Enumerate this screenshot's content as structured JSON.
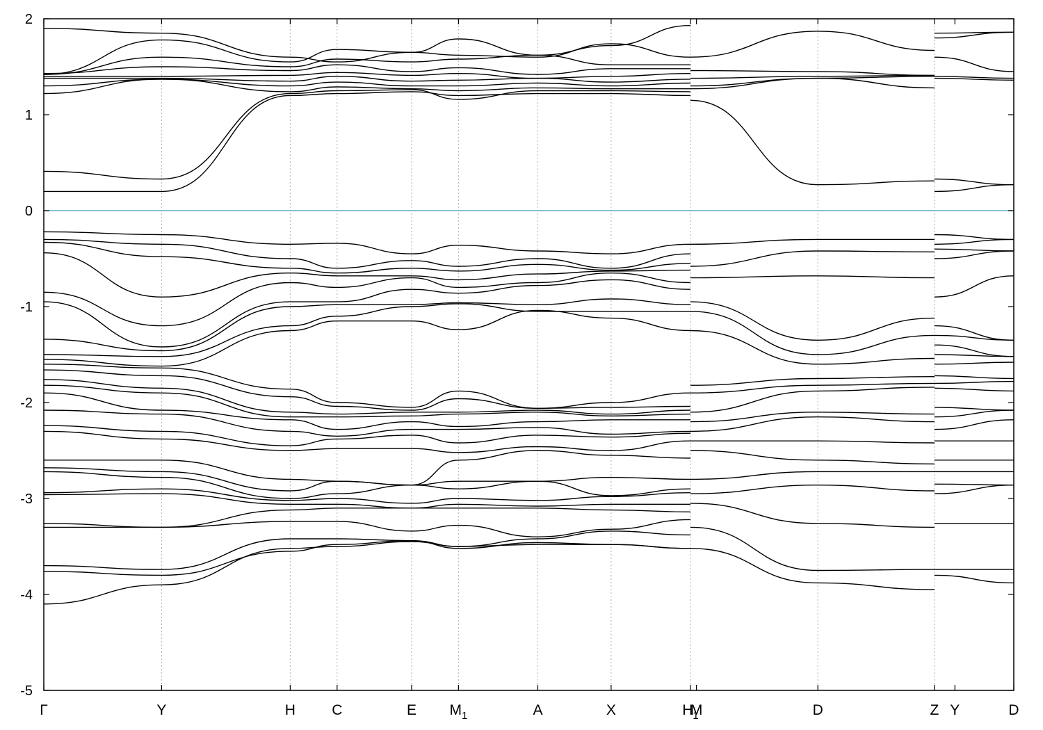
{
  "chart_data": {
    "type": "line",
    "title": "",
    "xlabel": "",
    "ylabel": "",
    "xlim": [
      0,
      8.07
    ],
    "ylim": [
      -5,
      2
    ],
    "y_ticks": [
      2,
      1,
      0,
      -1,
      -2,
      -3,
      -4,
      -5
    ],
    "y_tick_labels": [
      "2",
      "1",
      "0",
      "-1",
      "-2",
      "-3",
      "-4",
      "-5"
    ],
    "grid": "vertical dotted lines at high-symmetry points",
    "fermi_level": 0,
    "colors": {
      "bands": "#000000",
      "fermi": "#5ab4c8",
      "grid": "#b0b0b0"
    },
    "kpoints": [
      {
        "label": "Γ",
        "sub": "",
        "x": 0.0
      },
      {
        "label": "Y",
        "sub": "",
        "x": 0.98
      },
      {
        "label": "H",
        "sub": "",
        "x": 2.05
      },
      {
        "label": "C",
        "sub": "",
        "x": 2.44
      },
      {
        "label": "E",
        "sub": "",
        "x": 3.06
      },
      {
        "label": "M",
        "sub": "1",
        "x": 3.45
      },
      {
        "label": "A",
        "sub": "",
        "x": 4.11
      },
      {
        "label": "X",
        "sub": "",
        "x": 4.72
      },
      {
        "label": "H",
        "sub": "1",
        "x": 5.38
      },
      {
        "label": "M",
        "sub": "",
        "x": 5.43
      },
      {
        "label": "D",
        "sub": "",
        "x": 6.44
      },
      {
        "label": "Z",
        "sub": "",
        "x": 7.41
      },
      {
        "label": "Y",
        "sub": "",
        "x": 7.58
      },
      {
        "label": "D",
        "sub": "",
        "x": 8.07
      }
    ],
    "grid_x": [
      0.98,
      2.05,
      2.44,
      3.06,
      3.45,
      4.11,
      4.72,
      5.38,
      6.44,
      7.41
    ],
    "segments": [
      {
        "x_start": 0.0,
        "x_end": 5.38,
        "x": [
          0.0,
          0.98,
          2.05,
          2.44,
          3.06,
          3.45,
          4.11,
          4.72,
          5.38
        ]
      },
      {
        "x_start": 5.38,
        "x_end": 7.41,
        "x": [
          5.38,
          6.44,
          7.41
        ]
      },
      {
        "x_start": 7.41,
        "x_end": 8.07,
        "x": [
          7.41,
          8.07
        ]
      }
    ],
    "series": [
      {
        "segment": 0,
        "values": [
          0.2,
          0.2,
          1.2,
          1.22,
          1.24,
          1.2,
          1.22,
          1.22,
          1.2
        ]
      },
      {
        "segment": 0,
        "values": [
          0.41,
          0.33,
          1.22,
          1.25,
          1.26,
          1.16,
          1.25,
          1.25,
          1.24
        ]
      },
      {
        "segment": 0,
        "values": [
          1.22,
          1.37,
          1.24,
          1.29,
          1.27,
          1.25,
          1.28,
          1.27,
          1.27
        ]
      },
      {
        "segment": 0,
        "values": [
          1.3,
          1.37,
          1.3,
          1.34,
          1.3,
          1.3,
          1.33,
          1.3,
          1.33
        ]
      },
      {
        "segment": 0,
        "values": [
          1.38,
          1.38,
          1.35,
          1.4,
          1.35,
          1.36,
          1.38,
          1.34,
          1.37
        ]
      },
      {
        "segment": 0,
        "values": [
          1.4,
          1.4,
          1.41,
          1.44,
          1.41,
          1.43,
          1.38,
          1.4,
          1.43
        ]
      },
      {
        "segment": 0,
        "values": [
          1.43,
          1.5,
          1.46,
          1.52,
          1.45,
          1.49,
          1.42,
          1.48,
          1.48
        ]
      },
      {
        "segment": 0,
        "values": [
          1.42,
          1.6,
          1.5,
          1.58,
          1.55,
          1.58,
          1.62,
          1.52,
          1.52
        ]
      },
      {
        "segment": 0,
        "values": [
          1.42,
          1.78,
          1.55,
          1.68,
          1.65,
          1.62,
          1.6,
          1.74,
          1.6
        ]
      },
      {
        "segment": 0,
        "values": [
          1.9,
          1.85,
          1.6,
          1.55,
          1.65,
          1.79,
          1.62,
          1.72,
          1.93
        ]
      },
      {
        "segment": 0,
        "values": [
          -0.22,
          -0.25,
          -0.35,
          -0.34,
          -0.45,
          -0.36,
          -0.42,
          -0.45,
          -0.35
        ]
      },
      {
        "segment": 0,
        "values": [
          -0.3,
          -0.35,
          -0.5,
          -0.6,
          -0.52,
          -0.58,
          -0.5,
          -0.6,
          -0.45
        ]
      },
      {
        "segment": 0,
        "values": [
          -0.33,
          -0.48,
          -0.6,
          -0.65,
          -0.6,
          -0.63,
          -0.56,
          -0.62,
          -0.55
        ]
      },
      {
        "segment": 0,
        "values": [
          -0.44,
          -0.9,
          -0.65,
          -0.68,
          -0.68,
          -0.72,
          -0.66,
          -0.63,
          -0.62
        ]
      },
      {
        "segment": 0,
        "values": [
          -0.85,
          -1.2,
          -0.75,
          -0.8,
          -0.7,
          -0.8,
          -0.75,
          -0.65,
          -0.75
        ]
      },
      {
        "segment": 0,
        "values": [
          -0.95,
          -1.42,
          -0.95,
          -0.95,
          -0.82,
          -0.86,
          -0.78,
          -0.72,
          -0.82
        ]
      },
      {
        "segment": 0,
        "values": [
          -1.34,
          -1.46,
          -1.0,
          -0.98,
          -0.98,
          -0.96,
          -0.98,
          -0.92,
          -0.98
        ]
      },
      {
        "segment": 0,
        "values": [
          -1.5,
          -1.52,
          -1.2,
          -1.1,
          -1.0,
          -0.97,
          -1.05,
          -1.05,
          -1.05
        ]
      },
      {
        "segment": 0,
        "values": [
          -1.55,
          -1.62,
          -1.25,
          -1.15,
          -1.15,
          -1.24,
          -1.04,
          -1.12,
          -1.25
        ]
      },
      {
        "segment": 0,
        "values": [
          -1.6,
          -1.64,
          -1.86,
          -2.0,
          -2.05,
          -1.88,
          -2.06,
          -2.0,
          -1.9
        ]
      },
      {
        "segment": 0,
        "values": [
          -1.66,
          -1.72,
          -1.94,
          -2.04,
          -2.08,
          -1.96,
          -2.06,
          -2.05,
          -2.04
        ]
      },
      {
        "segment": 0,
        "values": [
          -1.76,
          -1.85,
          -2.1,
          -2.12,
          -2.1,
          -2.1,
          -2.08,
          -2.12,
          -2.08
        ]
      },
      {
        "segment": 0,
        "values": [
          -1.82,
          -1.9,
          -2.15,
          -2.15,
          -2.14,
          -2.12,
          -2.1,
          -2.14,
          -2.12
        ]
      },
      {
        "segment": 0,
        "values": [
          -1.9,
          -2.08,
          -2.18,
          -2.28,
          -2.2,
          -2.25,
          -2.2,
          -2.18,
          -2.18
        ]
      },
      {
        "segment": 0,
        "values": [
          -2.08,
          -2.12,
          -2.3,
          -2.35,
          -2.28,
          -2.28,
          -2.26,
          -2.33,
          -2.3
        ]
      },
      {
        "segment": 0,
        "values": [
          -2.24,
          -2.3,
          -2.45,
          -2.38,
          -2.34,
          -2.42,
          -2.34,
          -2.36,
          -2.32
        ]
      },
      {
        "segment": 0,
        "values": [
          -2.3,
          -2.38,
          -2.5,
          -2.48,
          -2.48,
          -2.52,
          -2.46,
          -2.5,
          -2.4
        ]
      },
      {
        "segment": 0,
        "values": [
          -2.6,
          -2.6,
          -2.8,
          -2.82,
          -2.86,
          -2.6,
          -2.5,
          -2.55,
          -2.58
        ]
      },
      {
        "segment": 0,
        "values": [
          -2.68,
          -2.72,
          -2.92,
          -2.82,
          -2.86,
          -2.82,
          -2.82,
          -2.78,
          -2.8
        ]
      },
      {
        "segment": 0,
        "values": [
          -2.72,
          -2.78,
          -3.0,
          -2.95,
          -2.86,
          -2.9,
          -2.82,
          -2.97,
          -2.9
        ]
      },
      {
        "segment": 0,
        "values": [
          -2.94,
          -2.9,
          -3.02,
          -3.0,
          -3.05,
          -3.0,
          -3.02,
          -2.98,
          -2.94
        ]
      },
      {
        "segment": 0,
        "values": [
          -2.96,
          -2.95,
          -3.06,
          -3.06,
          -3.1,
          -3.06,
          -3.08,
          -3.06,
          -3.06
        ]
      },
      {
        "segment": 0,
        "values": [
          -3.26,
          -3.3,
          -3.12,
          -3.1,
          -3.1,
          -3.1,
          -3.1,
          -3.12,
          -3.14
        ]
      },
      {
        "segment": 0,
        "values": [
          -3.3,
          -3.3,
          -3.24,
          -3.24,
          -3.34,
          -3.28,
          -3.4,
          -3.32,
          -3.22
        ]
      },
      {
        "segment": 0,
        "values": [
          -3.7,
          -3.74,
          -3.42,
          -3.42,
          -3.44,
          -3.5,
          -3.42,
          -3.34,
          -3.38
        ]
      },
      {
        "segment": 0,
        "values": [
          -3.76,
          -3.8,
          -3.55,
          -3.48,
          -3.44,
          -3.52,
          -3.46,
          -3.48,
          -3.52
        ]
      },
      {
        "segment": 0,
        "values": [
          -4.1,
          -3.9,
          -3.52,
          -3.5,
          -3.45,
          -3.5,
          -3.48,
          -3.48,
          -3.52
        ]
      },
      {
        "segment": 1,
        "values": [
          1.15,
          0.27,
          0.31
        ]
      },
      {
        "segment": 1,
        "values": [
          1.27,
          1.38,
          1.28
        ]
      },
      {
        "segment": 1,
        "values": [
          1.3,
          1.38,
          1.4
        ]
      },
      {
        "segment": 1,
        "values": [
          1.38,
          1.4,
          1.41
        ]
      },
      {
        "segment": 1,
        "values": [
          1.46,
          1.45,
          1.41
        ]
      },
      {
        "segment": 1,
        "values": [
          1.6,
          1.87,
          1.67
        ]
      },
      {
        "segment": 1,
        "values": [
          2.0,
          2.0,
          2.0
        ]
      },
      {
        "segment": 1,
        "values": [
          -0.35,
          -0.3,
          -0.3
        ]
      },
      {
        "segment": 1,
        "values": [
          -0.58,
          -0.42,
          -0.43
        ]
      },
      {
        "segment": 1,
        "values": [
          -0.7,
          -0.68,
          -0.7
        ]
      },
      {
        "segment": 1,
        "values": [
          -0.95,
          -1.35,
          -1.12
        ]
      },
      {
        "segment": 1,
        "values": [
          -1.05,
          -1.5,
          -1.3
        ]
      },
      {
        "segment": 1,
        "values": [
          -1.25,
          -1.6,
          -1.54
        ]
      },
      {
        "segment": 1,
        "values": [
          -1.82,
          -1.75,
          -1.73
        ]
      },
      {
        "segment": 1,
        "values": [
          -1.9,
          -1.82,
          -1.8
        ]
      },
      {
        "segment": 1,
        "values": [
          -2.1,
          -1.88,
          -1.84
        ]
      },
      {
        "segment": 1,
        "values": [
          -2.2,
          -2.1,
          -2.12
        ]
      },
      {
        "segment": 1,
        "values": [
          -2.3,
          -2.15,
          -2.2
        ]
      },
      {
        "segment": 1,
        "values": [
          -2.4,
          -2.4,
          -2.42
        ]
      },
      {
        "segment": 1,
        "values": [
          -2.5,
          -2.6,
          -2.64
        ]
      },
      {
        "segment": 1,
        "values": [
          -2.8,
          -2.72,
          -2.72
        ]
      },
      {
        "segment": 1,
        "values": [
          -2.95,
          -2.86,
          -2.92
        ]
      },
      {
        "segment": 1,
        "values": [
          -3.05,
          -3.26,
          -3.3
        ]
      },
      {
        "segment": 1,
        "values": [
          -3.3,
          -3.75,
          -3.74
        ]
      },
      {
        "segment": 1,
        "values": [
          -3.52,
          -3.88,
          -3.95
        ]
      },
      {
        "segment": 2,
        "values": [
          0.2,
          0.27
        ]
      },
      {
        "segment": 2,
        "values": [
          0.33,
          0.27
        ]
      },
      {
        "segment": 2,
        "values": [
          1.38,
          1.36
        ]
      },
      {
        "segment": 2,
        "values": [
          1.4,
          1.38
        ]
      },
      {
        "segment": 2,
        "values": [
          1.6,
          1.45
        ]
      },
      {
        "segment": 2,
        "values": [
          1.8,
          1.86
        ]
      },
      {
        "segment": 2,
        "values": [
          1.85,
          1.86
        ]
      },
      {
        "segment": 2,
        "values": [
          -0.25,
          -0.3
        ]
      },
      {
        "segment": 2,
        "values": [
          -0.35,
          -0.3
        ]
      },
      {
        "segment": 2,
        "values": [
          -0.4,
          -0.42
        ]
      },
      {
        "segment": 2,
        "values": [
          -0.5,
          -0.42
        ]
      },
      {
        "segment": 2,
        "values": [
          -0.9,
          -0.68
        ]
      },
      {
        "segment": 2,
        "values": [
          -1.2,
          -1.35
        ]
      },
      {
        "segment": 2,
        "values": [
          -1.3,
          -1.35
        ]
      },
      {
        "segment": 2,
        "values": [
          -1.4,
          -1.52
        ]
      },
      {
        "segment": 2,
        "values": [
          -1.5,
          -1.52
        ]
      },
      {
        "segment": 2,
        "values": [
          -1.6,
          -1.58
        ]
      },
      {
        "segment": 2,
        "values": [
          -1.72,
          -1.75
        ]
      },
      {
        "segment": 2,
        "values": [
          -1.8,
          -1.78
        ]
      },
      {
        "segment": 2,
        "values": [
          -1.85,
          -1.88
        ]
      },
      {
        "segment": 2,
        "values": [
          -2.05,
          -2.08
        ]
      },
      {
        "segment": 2,
        "values": [
          -2.15,
          -2.08
        ]
      },
      {
        "segment": 2,
        "values": [
          -2.28,
          -2.18
        ]
      },
      {
        "segment": 2,
        "values": [
          -2.4,
          -2.4
        ]
      },
      {
        "segment": 2,
        "values": [
          -2.6,
          -2.6
        ]
      },
      {
        "segment": 2,
        "values": [
          -2.72,
          -2.72
        ]
      },
      {
        "segment": 2,
        "values": [
          -2.85,
          -2.86
        ]
      },
      {
        "segment": 2,
        "values": [
          -2.95,
          -2.86
        ]
      },
      {
        "segment": 2,
        "values": [
          -3.26,
          -3.26
        ]
      },
      {
        "segment": 2,
        "values": [
          -3.74,
          -3.74
        ]
      },
      {
        "segment": 2,
        "values": [
          -3.8,
          -3.88
        ]
      }
    ]
  }
}
